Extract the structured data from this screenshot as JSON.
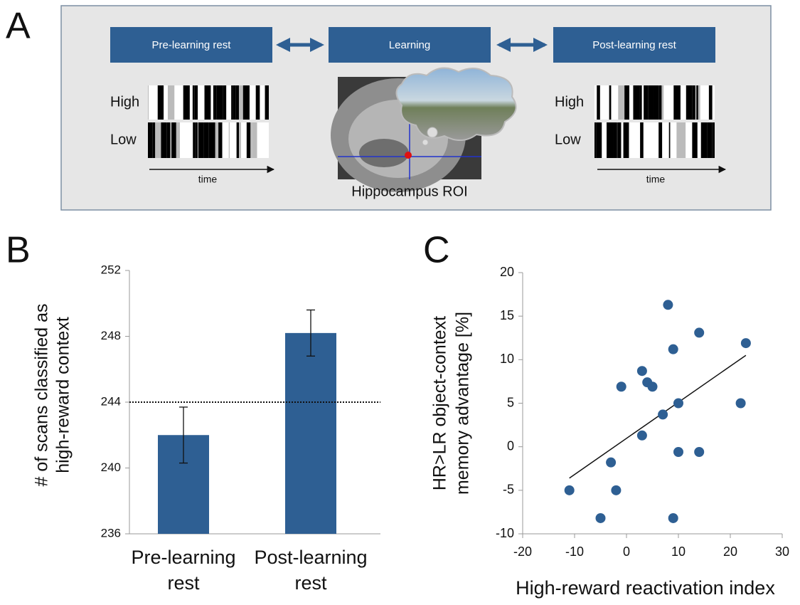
{
  "diagram": {
    "panel_label": "A",
    "boxes": [
      "Pre-learning rest",
      "Learning",
      "Post-learning rest"
    ],
    "rasters": [
      {
        "rows": [
          "High",
          "Low"
        ],
        "axis": "time"
      },
      {
        "rows": [
          "High",
          "Low"
        ],
        "axis": "time"
      }
    ],
    "image_caption": "Hippocampus ROI"
  },
  "chart_data": [
    {
      "type": "bar",
      "panel_label": "B",
      "ylabel": [
        "# of scans classified as",
        "high-reward context"
      ],
      "categories": [
        [
          "Pre-learning",
          "rest"
        ],
        [
          "Post-learning",
          "rest"
        ]
      ],
      "values": [
        242,
        248.2
      ],
      "errors": [
        1.7,
        1.4
      ],
      "color": "#2e5f93",
      "ylim": [
        236,
        252
      ],
      "yticks": [
        236,
        240,
        244,
        248,
        252
      ],
      "reference_line": 244
    },
    {
      "type": "scatter",
      "panel_label": "C",
      "xlabel": "High-reward reactivation index",
      "ylabel": [
        "HR>LR object-context",
        "memory advantage [%]"
      ],
      "color": "#2e5f93",
      "x": [
        -11,
        -5,
        -3,
        -2,
        -1,
        3,
        3,
        4,
        5,
        7,
        8,
        9,
        9,
        10,
        10,
        14,
        14,
        22,
        23
      ],
      "y": [
        -5,
        -8.2,
        -1.8,
        -5,
        6.9,
        8.7,
        1.3,
        7.4,
        6.9,
        3.7,
        16.3,
        11.2,
        -8.2,
        5,
        -0.6,
        13.1,
        -0.6,
        5,
        11.9
      ],
      "fit_line": {
        "x": [
          -11,
          23
        ],
        "y": [
          -3.6,
          10.5
        ]
      },
      "xlim": [
        -20,
        30
      ],
      "xticks": [
        -20,
        -10,
        0,
        10,
        20,
        30
      ],
      "ylim": [
        -10,
        20
      ],
      "yticks": [
        -10,
        -5,
        0,
        5,
        10,
        15,
        20
      ]
    }
  ]
}
